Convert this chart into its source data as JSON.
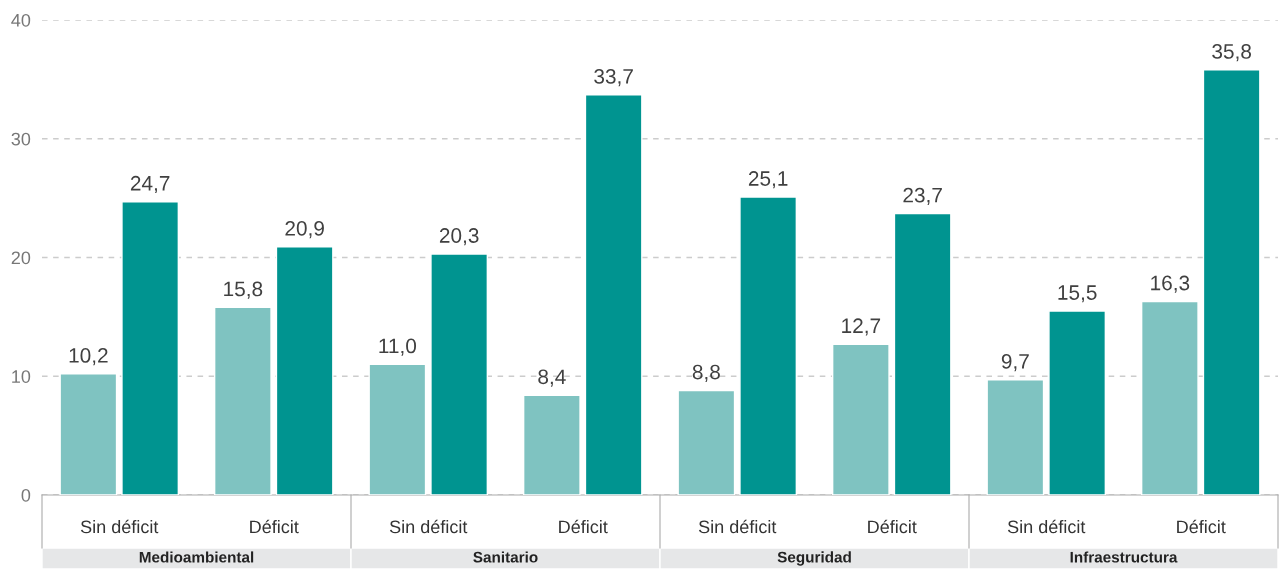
{
  "chart_data": {
    "type": "bar",
    "categories": [
      "Sin déficit",
      "Déficit",
      "Sin déficit",
      "Déficit",
      "Sin déficit",
      "Déficit",
      "Sin déficit",
      "Déficit"
    ],
    "series": [
      {
        "color": "#7fc3c1",
        "values": [
          10.2,
          15.8,
          11.0,
          8.4,
          8.8,
          12.7,
          9.7,
          16.3
        ],
        "value_labels": [
          "10,2",
          "15,8",
          "11,0",
          "8,4",
          "8,8",
          "12,7",
          "9,7",
          "16,3"
        ]
      },
      {
        "color": "#009490",
        "values": [
          24.7,
          20.9,
          20.3,
          33.7,
          25.1,
          23.7,
          15.5,
          35.8
        ],
        "value_labels": [
          "24,7",
          "20,9",
          "20,3",
          "33,7",
          "25,1",
          "23,7",
          "15,5",
          "35,8"
        ]
      }
    ],
    "annotations": [
      "Medioambiental",
      "Sanitario",
      "Seguridad",
      "Infraestructura"
    ],
    "ylim": [
      0,
      40
    ],
    "yticks": [
      0,
      10,
      20,
      30,
      40
    ],
    "grid": "y"
  }
}
